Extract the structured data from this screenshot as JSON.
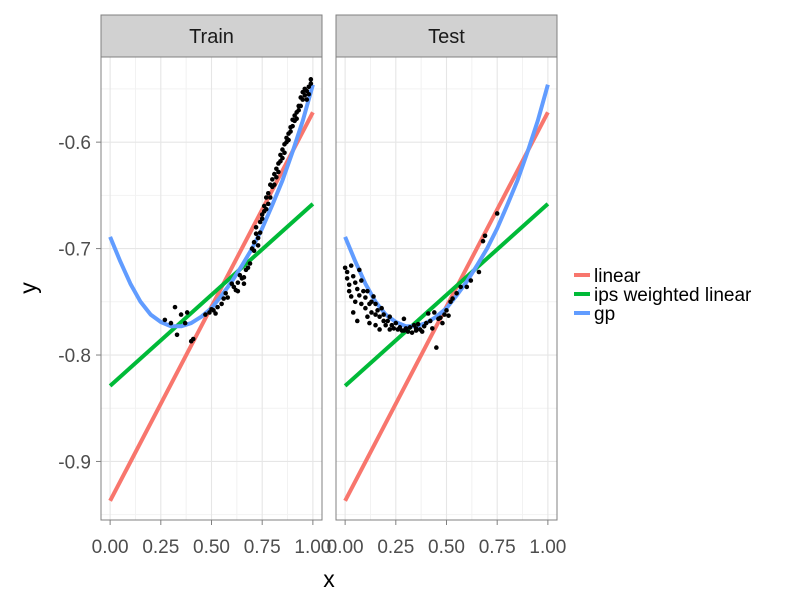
{
  "chart_data": {
    "type": "scatter",
    "xlabel": "x",
    "ylabel": "y",
    "xlim": [
      -0.045,
      1.045
    ],
    "ylim": [
      -0.955,
      -0.52
    ],
    "x_ticks": [
      0.0,
      0.25,
      0.5,
      0.75,
      1.0
    ],
    "x_tick_labels": [
      "0.00",
      "0.25",
      "0.50",
      "0.75",
      "1.00"
    ],
    "y_ticks": [
      -0.6,
      -0.7,
      -0.8,
      -0.9
    ],
    "y_tick_labels": [
      "-0.6",
      "-0.7",
      "-0.8",
      "-0.9"
    ],
    "grid": true,
    "legend_position": "right",
    "panels": [
      {
        "title": "Train",
        "points": [
          [
            0.27,
            -0.767
          ],
          [
            0.3,
            -0.77
          ],
          [
            0.32,
            -0.755
          ],
          [
            0.33,
            -0.781
          ],
          [
            0.35,
            -0.762
          ],
          [
            0.37,
            -0.77
          ],
          [
            0.38,
            -0.76
          ],
          [
            0.4,
            -0.787
          ],
          [
            0.41,
            -0.785
          ],
          [
            0.47,
            -0.762
          ],
          [
            0.49,
            -0.76
          ],
          [
            0.5,
            -0.757
          ],
          [
            0.51,
            -0.758
          ],
          [
            0.52,
            -0.761
          ],
          [
            0.53,
            -0.755
          ],
          [
            0.55,
            -0.752
          ],
          [
            0.56,
            -0.747
          ],
          [
            0.57,
            -0.742
          ],
          [
            0.58,
            -0.746
          ],
          [
            0.6,
            -0.733
          ],
          [
            0.61,
            -0.736
          ],
          [
            0.62,
            -0.739
          ],
          [
            0.63,
            -0.732
          ],
          [
            0.64,
            -0.725
          ],
          [
            0.65,
            -0.728
          ],
          [
            0.66,
            -0.727
          ],
          [
            0.67,
            -0.72
          ],
          [
            0.68,
            -0.718
          ],
          [
            0.69,
            -0.714
          ],
          [
            0.7,
            -0.7
          ],
          [
            0.71,
            -0.694
          ],
          [
            0.72,
            -0.686
          ],
          [
            0.72,
            -0.68
          ],
          [
            0.73,
            -0.69
          ],
          [
            0.73,
            -0.697
          ],
          [
            0.74,
            -0.685
          ],
          [
            0.74,
            -0.675
          ],
          [
            0.75,
            -0.668
          ],
          [
            0.75,
            -0.672
          ],
          [
            0.76,
            -0.665
          ],
          [
            0.76,
            -0.66
          ],
          [
            0.77,
            -0.652
          ],
          [
            0.77,
            -0.663
          ],
          [
            0.78,
            -0.648
          ],
          [
            0.78,
            -0.658
          ],
          [
            0.79,
            -0.652
          ],
          [
            0.79,
            -0.64
          ],
          [
            0.8,
            -0.642
          ],
          [
            0.8,
            -0.635
          ],
          [
            0.81,
            -0.64
          ],
          [
            0.81,
            -0.63
          ],
          [
            0.82,
            -0.625
          ],
          [
            0.82,
            -0.633
          ],
          [
            0.83,
            -0.628
          ],
          [
            0.83,
            -0.62
          ],
          [
            0.84,
            -0.618
          ],
          [
            0.84,
            -0.612
          ],
          [
            0.85,
            -0.615
          ],
          [
            0.85,
            -0.607
          ],
          [
            0.86,
            -0.61
          ],
          [
            0.86,
            -0.602
          ],
          [
            0.87,
            -0.6
          ],
          [
            0.87,
            -0.596
          ],
          [
            0.88,
            -0.598
          ],
          [
            0.88,
            -0.592
          ],
          [
            0.89,
            -0.59
          ],
          [
            0.89,
            -0.586
          ],
          [
            0.9,
            -0.585
          ],
          [
            0.9,
            -0.579
          ],
          [
            0.91,
            -0.58
          ],
          [
            0.91,
            -0.575
          ],
          [
            0.92,
            -0.572
          ],
          [
            0.92,
            -0.578
          ],
          [
            0.93,
            -0.57
          ],
          [
            0.93,
            -0.566
          ],
          [
            0.94,
            -0.566
          ],
          [
            0.94,
            -0.558
          ],
          [
            0.95,
            -0.56
          ],
          [
            0.95,
            -0.553
          ],
          [
            0.96,
            -0.556
          ],
          [
            0.96,
            -0.55
          ],
          [
            0.97,
            -0.552
          ],
          [
            0.97,
            -0.56
          ],
          [
            0.98,
            -0.548
          ],
          [
            0.98,
            -0.555
          ],
          [
            0.99,
            -0.545
          ],
          [
            0.99,
            -0.541
          ],
          [
            0.71,
            -0.702
          ],
          [
            0.66,
            -0.733
          ],
          [
            0.63,
            -0.74
          ]
        ]
      },
      {
        "title": "Test",
        "points": [
          [
            0.0,
            -0.718
          ],
          [
            0.01,
            -0.722
          ],
          [
            0.01,
            -0.728
          ],
          [
            0.02,
            -0.734
          ],
          [
            0.02,
            -0.74
          ],
          [
            0.03,
            -0.716
          ],
          [
            0.03,
            -0.745
          ],
          [
            0.04,
            -0.726
          ],
          [
            0.04,
            -0.76
          ],
          [
            0.05,
            -0.732
          ],
          [
            0.05,
            -0.75
          ],
          [
            0.06,
            -0.738
          ],
          [
            0.06,
            -0.768
          ],
          [
            0.07,
            -0.72
          ],
          [
            0.07,
            -0.744
          ],
          [
            0.08,
            -0.73
          ],
          [
            0.08,
            -0.752
          ],
          [
            0.09,
            -0.74
          ],
          [
            0.1,
            -0.746
          ],
          [
            0.1,
            -0.756
          ],
          [
            0.11,
            -0.74
          ],
          [
            0.11,
            -0.764
          ],
          [
            0.12,
            -0.752
          ],
          [
            0.12,
            -0.77
          ],
          [
            0.13,
            -0.75
          ],
          [
            0.13,
            -0.76
          ],
          [
            0.14,
            -0.745
          ],
          [
            0.15,
            -0.752
          ],
          [
            0.15,
            -0.772
          ],
          [
            0.16,
            -0.758
          ],
          [
            0.17,
            -0.764
          ],
          [
            0.17,
            -0.776
          ],
          [
            0.18,
            -0.756
          ],
          [
            0.19,
            -0.768
          ],
          [
            0.19,
            -0.762
          ],
          [
            0.2,
            -0.772
          ],
          [
            0.21,
            -0.768
          ],
          [
            0.22,
            -0.776
          ],
          [
            0.22,
            -0.764
          ],
          [
            0.23,
            -0.772
          ],
          [
            0.24,
            -0.775
          ],
          [
            0.25,
            -0.77
          ],
          [
            0.26,
            -0.776
          ],
          [
            0.27,
            -0.774
          ],
          [
            0.28,
            -0.777
          ],
          [
            0.29,
            -0.766
          ],
          [
            0.3,
            -0.775
          ],
          [
            0.31,
            -0.778
          ],
          [
            0.32,
            -0.774
          ],
          [
            0.33,
            -0.779
          ],
          [
            0.34,
            -0.772
          ],
          [
            0.35,
            -0.777
          ],
          [
            0.36,
            -0.771
          ],
          [
            0.37,
            -0.776
          ],
          [
            0.38,
            -0.778
          ],
          [
            0.39,
            -0.773
          ],
          [
            0.4,
            -0.77
          ],
          [
            0.41,
            -0.761
          ],
          [
            0.42,
            -0.768
          ],
          [
            0.43,
            -0.775
          ],
          [
            0.44,
            -0.76
          ],
          [
            0.45,
            -0.793
          ],
          [
            0.46,
            -0.766
          ],
          [
            0.47,
            -0.765
          ],
          [
            0.48,
            -0.77
          ],
          [
            0.49,
            -0.762
          ],
          [
            0.5,
            -0.758
          ],
          [
            0.51,
            -0.763
          ],
          [
            0.52,
            -0.75
          ],
          [
            0.53,
            -0.747
          ],
          [
            0.55,
            -0.742
          ],
          [
            0.57,
            -0.736
          ],
          [
            0.6,
            -0.736
          ],
          [
            0.62,
            -0.73
          ],
          [
            0.66,
            -0.722
          ],
          [
            0.68,
            -0.693
          ],
          [
            0.69,
            -0.688
          ],
          [
            0.75,
            -0.667
          ],
          [
            0.35,
            -0.775
          ],
          [
            0.29,
            -0.777
          ],
          [
            0.15,
            -0.762
          ]
        ]
      }
    ],
    "series": [
      {
        "name": "linear",
        "color": "#F8766D",
        "x": [
          0,
          1
        ],
        "y": [
          -0.937,
          -0.572
        ]
      },
      {
        "name": "ips weighted linear",
        "color": "#00BA38",
        "x": [
          0,
          1
        ],
        "y": [
          -0.829,
          -0.658
        ]
      },
      {
        "name": "gp",
        "color": "#619CFF",
        "x": [
          0.0,
          0.05,
          0.1,
          0.15,
          0.2,
          0.25,
          0.3,
          0.35,
          0.4,
          0.45,
          0.5,
          0.55,
          0.6,
          0.65,
          0.7,
          0.75,
          0.8,
          0.85,
          0.9,
          0.95,
          1.0
        ],
        "y": [
          -0.689,
          -0.712,
          -0.733,
          -0.75,
          -0.762,
          -0.769,
          -0.773,
          -0.773,
          -0.77,
          -0.764,
          -0.756,
          -0.744,
          -0.731,
          -0.716,
          -0.7,
          -0.681,
          -0.659,
          -0.636,
          -0.609,
          -0.58,
          -0.546
        ]
      }
    ]
  }
}
